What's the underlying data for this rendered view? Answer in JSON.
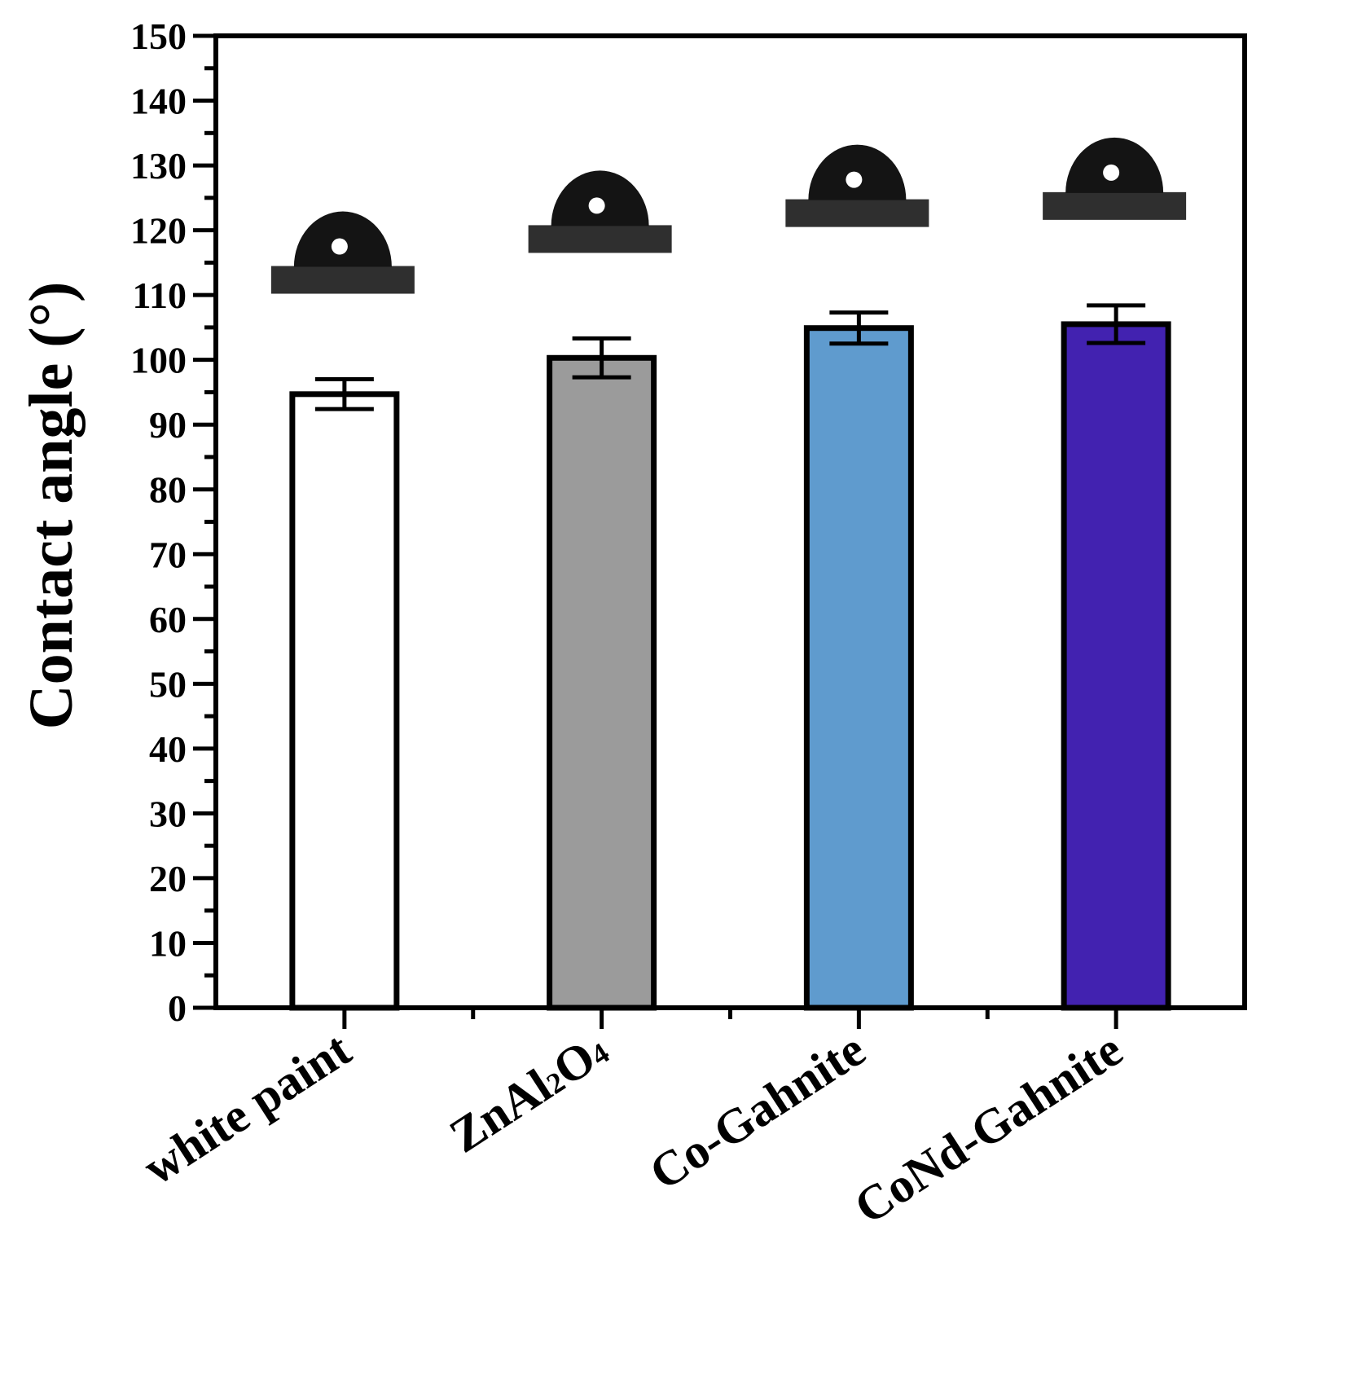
{
  "chart_data": {
    "type": "bar",
    "title": "",
    "xlabel": "",
    "ylabel": "Contact angle (°)",
    "ylim": [
      0,
      150
    ],
    "yticks": [
      0,
      10,
      20,
      30,
      40,
      50,
      60,
      70,
      80,
      90,
      100,
      110,
      120,
      130,
      140,
      150
    ],
    "grid": false,
    "categories": [
      {
        "name": "white paint",
        "parts": [
          {
            "t": "white paint",
            "sub": false
          }
        ]
      },
      {
        "name": "ZnAl2O4",
        "parts": [
          {
            "t": "ZnAl",
            "sub": false
          },
          {
            "t": "2",
            "sub": true
          },
          {
            "t": "O",
            "sub": false
          },
          {
            "t": "4",
            "sub": true
          }
        ]
      },
      {
        "name": "Co-Gahnite",
        "parts": [
          {
            "t": "Co-Gahnite",
            "sub": false
          }
        ]
      },
      {
        "name": "CoNd-Gahnite",
        "parts": [
          {
            "t": "CoNd-Gahnite",
            "sub": false
          }
        ]
      }
    ],
    "values": [
      94.7,
      100.3,
      104.9,
      105.5
    ],
    "errors": [
      2.3,
      3.0,
      2.4,
      2.9
    ],
    "colors": [
      "#ffffff",
      "#9b9b9b",
      "#5f9bce",
      "#4222b0"
    ],
    "insets": [
      "water droplet image",
      "water droplet image",
      "water droplet image",
      "water droplet image"
    ]
  }
}
